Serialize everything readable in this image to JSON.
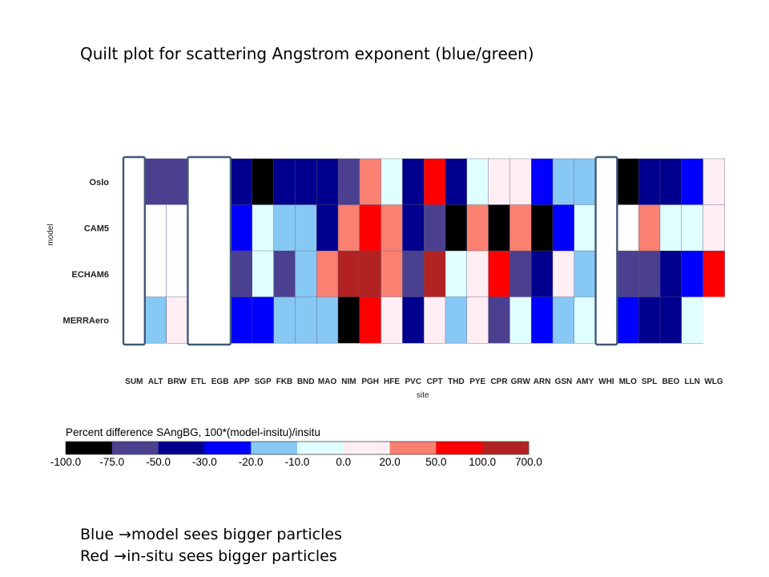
{
  "slide_title": "Quilt plot for scattering Angstrom exponent (blue/green)",
  "notes": [
    {
      "lead": "Blue ",
      "arrow": "→",
      "text": "model sees bigger particles"
    },
    {
      "lead": "Red ",
      "arrow": "→",
      "text": "in-situ sees bigger particles"
    }
  ],
  "chart_data": {
    "type": "heatmap",
    "title": "",
    "xlabel": "site",
    "ylabel": "model",
    "x_categories": [
      "SUM",
      "ALT",
      "BRW",
      "ETL",
      "EGB",
      "APP",
      "SGP",
      "FKB",
      "BND",
      "MAO",
      "NIM",
      "PGH",
      "HFE",
      "PVC",
      "CPT",
      "THD",
      "PYE",
      "CPR",
      "GRW",
      "ARN",
      "GSN",
      "AMY",
      "WHI",
      "MLO",
      "SPL",
      "BEO",
      "LLN",
      "WLG"
    ],
    "x_tick_labels_display": [
      "SUM",
      "ALT",
      "BRW",
      "ETL",
      "EGB",
      "APP",
      "SGP",
      "FKB",
      "BND",
      "MAO",
      "NIM",
      "PGH",
      "HFE",
      "PVC",
      "CPT",
      "THD",
      "PYE",
      "CPR",
      "GRW",
      "ARN",
      "GSN",
      "AMY",
      "WHI",
      "MLO",
      "SPL",
      "BEO",
      "LLN",
      "WLG"
    ],
    "y_categories": [
      "Oslo",
      "CAM5",
      "ECHAM6",
      "MERRAero"
    ],
    "value_unit": "percent difference bin index (see colorbar)",
    "bins": [
      {
        "range": [
          -100,
          -75
        ],
        "color": "#000000"
      },
      {
        "range": [
          -75,
          -50
        ],
        "color": "#4b3f8f"
      },
      {
        "range": [
          -50,
          -30
        ],
        "color": "#00008f"
      },
      {
        "range": [
          -30,
          -20
        ],
        "color": "#0000ff"
      },
      {
        "range": [
          -20,
          -10
        ],
        "color": "#87c8f5"
      },
      {
        "range": [
          -10,
          0
        ],
        "color": "#e0ffff"
      },
      {
        "range": [
          0,
          20
        ],
        "color": "#ffeef3"
      },
      {
        "range": [
          20,
          50
        ],
        "color": "#fa8072"
      },
      {
        "range": [
          50,
          100
        ],
        "color": "#ff0000"
      },
      {
        "range": [
          100,
          700
        ],
        "color": "#b22222"
      }
    ],
    "cells": [
      [
        null,
        1,
        1,
        null,
        null,
        2,
        0,
        2,
        2,
        2,
        1,
        7,
        5,
        2,
        8,
        2,
        5,
        6,
        6,
        3,
        4,
        4,
        null,
        0,
        2,
        2,
        3,
        6
      ],
      [
        null,
        null,
        null,
        null,
        null,
        3,
        5,
        4,
        4,
        2,
        7,
        8,
        7,
        2,
        1,
        0,
        7,
        0,
        7,
        0,
        3,
        5,
        null,
        null,
        7,
        5,
        5,
        6
      ],
      [
        null,
        null,
        null,
        null,
        null,
        1,
        5,
        1,
        4,
        7,
        9,
        9,
        7,
        1,
        9,
        5,
        6,
        8,
        1,
        2,
        6,
        4,
        null,
        1,
        1,
        2,
        3,
        8
      ],
      [
        null,
        4,
        6,
        null,
        null,
        3,
        3,
        4,
        4,
        4,
        0,
        8,
        6,
        2,
        6,
        4,
        6,
        1,
        5,
        3,
        4,
        5,
        null,
        3,
        2,
        2,
        5,
        null
      ]
    ],
    "outlined_sites": [
      "SUM",
      "ETL",
      "EGB",
      "WHI"
    ],
    "colorbar": {
      "title": "Percent difference SAngBG, 100*(model-insitu)/insitu",
      "tick_labels": [
        "-100.0",
        "-75.0",
        "-50.0",
        "-30.0",
        "-20.0",
        "-10.0",
        "0.0",
        "20.0",
        "50.0",
        "100.0",
        "700.0"
      ]
    }
  }
}
